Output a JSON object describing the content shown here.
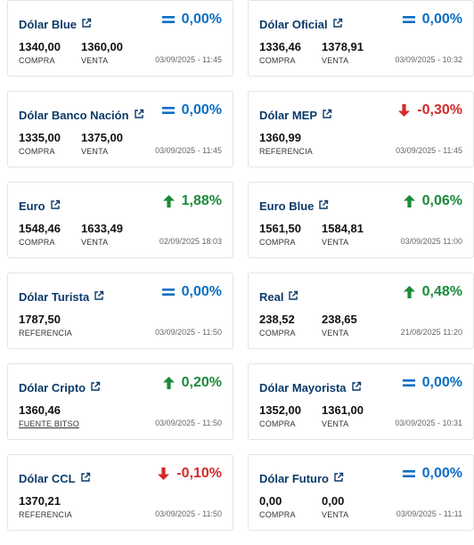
{
  "colors": {
    "title": "#0b3a6a",
    "equal": "#0c6fc4",
    "up": "#1a8a3a",
    "down": "#d42a2a"
  },
  "cards": [
    {
      "title": "Dólar Blue",
      "icon": "external-link-icon",
      "dir": "eq",
      "variation": "0,00%",
      "values": [
        {
          "num": "1340,00",
          "label": "COMPRA"
        },
        {
          "num": "1360,00",
          "label": "VENTA"
        }
      ],
      "timestamp": "03/09/2025 - 11:45"
    },
    {
      "title": "Dólar Oficial",
      "icon": "external-link-icon",
      "dir": "eq",
      "variation": "0,00%",
      "values": [
        {
          "num": "1336,46",
          "label": "COMPRA"
        },
        {
          "num": "1378,91",
          "label": "VENTA"
        }
      ],
      "timestamp": "03/09/2025 - 10:32"
    },
    {
      "title": "Dólar Banco Nación",
      "icon": "external-link-icon",
      "dir": "eq",
      "variation": "0,00%",
      "values": [
        {
          "num": "1335,00",
          "label": "COMPRA"
        },
        {
          "num": "1375,00",
          "label": "VENTA"
        }
      ],
      "timestamp": "03/09/2025 - 11:45"
    },
    {
      "title": "Dólar MEP",
      "icon": "external-link-icon",
      "dir": "down",
      "variation": "-0,30%",
      "values": [
        {
          "num": "1360,99",
          "label": "REFERENCIA"
        }
      ],
      "timestamp": "03/09/2025 - 11:45"
    },
    {
      "title": "Euro",
      "icon": "external-link-icon",
      "dir": "up",
      "variation": "1,88%",
      "values": [
        {
          "num": "1548,46",
          "label": "COMPRA"
        },
        {
          "num": "1633,49",
          "label": "VENTA"
        }
      ],
      "timestamp": "02/09/2025 18:03"
    },
    {
      "title": "Euro Blue",
      "icon": "external-link-icon",
      "dir": "up",
      "variation": "0,06%",
      "values": [
        {
          "num": "1561,50",
          "label": "COMPRA"
        },
        {
          "num": "1584,81",
          "label": "VENTA"
        }
      ],
      "timestamp": "03/09/2025 11:00"
    },
    {
      "title": "Dólar Turista",
      "icon": "external-link-icon",
      "dir": "eq",
      "variation": "0,00%",
      "values": [
        {
          "num": "1787,50",
          "label": "REFERENCIA"
        }
      ],
      "timestamp": "03/09/2025 - 11:50"
    },
    {
      "title": "Real",
      "icon": "external-link-icon",
      "dir": "up",
      "variation": "0,48%",
      "values": [
        {
          "num": "238,52",
          "label": "COMPRA"
        },
        {
          "num": "238,65",
          "label": "VENTA"
        }
      ],
      "timestamp": "21/08/2025 11:20"
    },
    {
      "title": "Dólar Cripto",
      "icon": "external-link-icon",
      "dir": "up",
      "variation": "0,20%",
      "values": [
        {
          "num": "1360,46",
          "label": "FUENTE BITSO",
          "link": true
        }
      ],
      "timestamp": "03/09/2025 - 11:50"
    },
    {
      "title": "Dólar Mayorista",
      "icon": "external-link-icon",
      "dir": "eq",
      "variation": "0,00%",
      "values": [
        {
          "num": "1352,00",
          "label": "COMPRA"
        },
        {
          "num": "1361,00",
          "label": "VENTA"
        }
      ],
      "timestamp": "03/09/2025 - 10:31"
    },
    {
      "title": "Dólar CCL",
      "icon": "external-link-icon",
      "dir": "down",
      "variation": "-0,10%",
      "values": [
        {
          "num": "1370,21",
          "label": "REFERENCIA"
        }
      ],
      "timestamp": "03/09/2025 - 11:50"
    },
    {
      "title": "Dólar Futuro",
      "icon": "external-link-icon",
      "dir": "eq",
      "variation": "0,00%",
      "values": [
        {
          "num": "0,00",
          "label": "COMPRA"
        },
        {
          "num": "0,00",
          "label": "VENTA"
        }
      ],
      "timestamp": "03/09/2025 - 11:11"
    }
  ]
}
